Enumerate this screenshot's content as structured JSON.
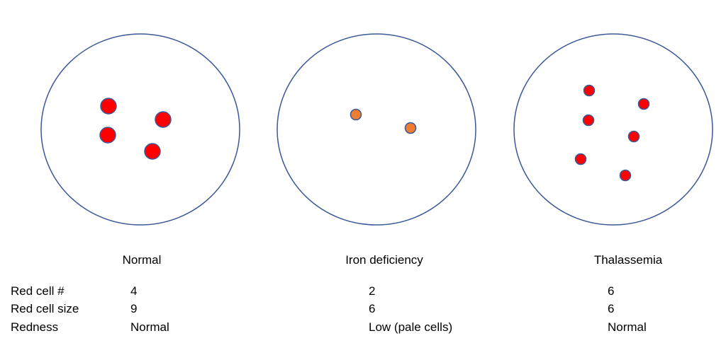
{
  "colors": {
    "outline": "#3b5998",
    "normal_cell": "#ff0000",
    "pale_cell": "#ed7d31",
    "background": "#ffffff"
  },
  "panels": [
    {
      "title": "Normal",
      "cell_size": "large",
      "cell_color": "normal_cell",
      "cells": [
        [
          153,
          150
        ],
        [
          230,
          169
        ],
        [
          152,
          191
        ],
        [
          215,
          214
        ]
      ]
    },
    {
      "title": "Iron deficiency",
      "cell_size": "small",
      "cell_color": "pale_cell",
      "cells": [
        [
          502,
          162
        ],
        [
          579,
          181
        ]
      ]
    },
    {
      "title": "Thalassemia",
      "cell_size": "small",
      "cell_color": "normal_cell",
      "cells": [
        [
          831,
          128
        ],
        [
          908,
          147
        ],
        [
          830,
          170
        ],
        [
          894,
          193
        ],
        [
          819,
          225
        ],
        [
          882,
          248
        ]
      ]
    }
  ],
  "table": {
    "labels": [
      "Red cell #",
      "Red cell size",
      "Redness"
    ],
    "columns": [
      [
        "4",
        "9",
        "Normal"
      ],
      [
        "2",
        "6",
        "Low (pale cells)"
      ],
      [
        "6",
        "6",
        "Normal"
      ]
    ]
  }
}
